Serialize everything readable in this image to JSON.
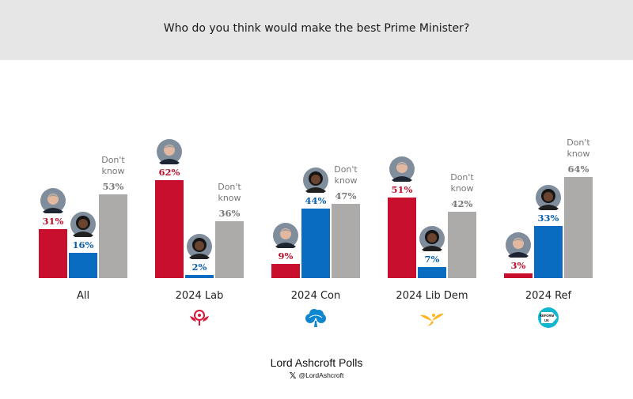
{
  "chart_data": {
    "type": "bar",
    "title": "Who do you think would make the best Prime Minister?",
    "categories": [
      "All",
      "2024 Lab",
      "2024 Con",
      "2024 Lib Dem",
      "2024 Ref"
    ],
    "series": [
      {
        "values": [
          31,
          62,
          9,
          51,
          3
        ],
        "color": "#c8102e",
        "portrait": "starmer-portrait-icon"
      },
      {
        "values": [
          16,
          2,
          44,
          7,
          33
        ],
        "color": "#0a6cc0",
        "portrait": "badenoch-portrait-icon"
      },
      {
        "name": "Don't know",
        "values": [
          53,
          36,
          47,
          42,
          64
        ],
        "color": "#adaaaa"
      }
    ],
    "value_suffix": "%",
    "ylim": [
      0,
      64
    ],
    "legend": "inline labels above bars",
    "grid": false,
    "dont_know_label": [
      "Don't",
      "know"
    ],
    "party_logos": [
      "",
      "labour-rose-icon",
      "conservative-tree-icon",
      "libdem-bird-icon",
      "reform-uk-icon"
    ],
    "reform_logo_text": "REFORM UK"
  },
  "footer": {
    "source": "Lord Ashcroft Polls",
    "x_icon": "x-logo-icon",
    "x_glyph": "𝕏",
    "handle": "@LordAshcroft"
  }
}
